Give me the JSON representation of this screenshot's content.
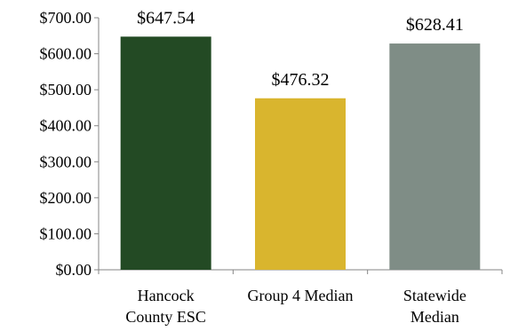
{
  "chart_data": {
    "type": "bar",
    "categories": [
      [
        "Hancock",
        "County ESC"
      ],
      [
        "Group 4 Median"
      ],
      [
        "Statewide",
        "Median"
      ]
    ],
    "values": [
      647.54,
      476.32,
      628.41
    ],
    "data_labels": [
      "$647.54",
      "$476.32",
      "$628.41"
    ],
    "colors": [
      "#234a24",
      "#d9b52e",
      "#7f8d86"
    ],
    "ylim": [
      0,
      700
    ],
    "y_ticks": [
      {
        "value": 0,
        "label": "$0.00"
      },
      {
        "value": 100,
        "label": "$100.00"
      },
      {
        "value": 200,
        "label": "$200.00"
      },
      {
        "value": 300,
        "label": "$300.00"
      },
      {
        "value": 400,
        "label": "$400.00"
      },
      {
        "value": 500,
        "label": "$500.00"
      },
      {
        "value": 600,
        "label": "$600.00"
      },
      {
        "value": 700,
        "label": "$700.00"
      }
    ],
    "grid": false,
    "legend": "none"
  }
}
